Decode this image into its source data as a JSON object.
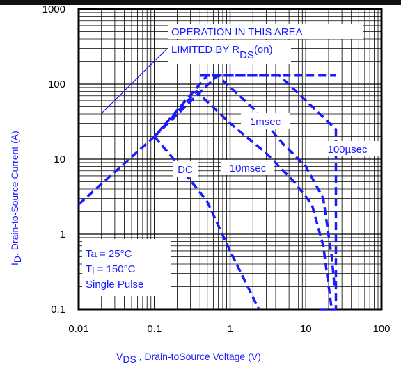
{
  "chart_data": {
    "type": "line",
    "x_scale": "log",
    "y_scale": "log",
    "xlim": [
      0.01,
      100
    ],
    "ylim": [
      0.1,
      1000
    ],
    "x_ticks": [
      "0.01",
      "0.1",
      "1",
      "10",
      "100"
    ],
    "y_ticks": [
      "0.1",
      "1",
      "10",
      "100",
      "1000"
    ],
    "grid": true,
    "xlabel": {
      "main": "V",
      "sub": "DS",
      "rest": ", Drain-toSource Voltage (V)"
    },
    "ylabel": {
      "main": "I",
      "sub": "D",
      "rest": ",  Drain-to-Source Current (A)"
    },
    "annotations": {
      "line1": "OPERATION IN THIS AREA",
      "line2_main": "LIMITED BY R",
      "line2_sub": "DS",
      "line2_rest": "(on)"
    },
    "conditions": [
      "Ta = 25°C",
      "Tj = 150°C",
      "Single Pulse"
    ],
    "series": [
      {
        "name": "100µsec",
        "x": [
          0.01,
          0.1,
          0.5,
          4.5,
          25,
          25,
          25
        ],
        "y": [
          2.5,
          20,
          130,
          130,
          25,
          1,
          0.1
        ]
      },
      {
        "name": "1msec",
        "x": [
          0.1,
          0.68,
          2,
          5,
          10,
          17,
          22,
          24
        ],
        "y": [
          20,
          130,
          48,
          16,
          8,
          3,
          0.5,
          0.2
        ]
      },
      {
        "name": "10msec",
        "x": [
          0.1,
          0.36,
          1,
          3,
          7,
          12,
          17,
          22
        ],
        "y": [
          20,
          80,
          30,
          12,
          5,
          2.5,
          0.7,
          0.1
        ]
      },
      {
        "name": "DC",
        "x": [
          0.1,
          0.18,
          0.5,
          1,
          2.4
        ],
        "y": [
          20,
          10,
          2.7,
          0.6,
          0.1
        ]
      }
    ],
    "limit_lines": [
      {
        "x": [
          0.4,
          25
        ],
        "y": [
          130,
          130
        ]
      },
      {
        "x": [
          15,
          25
        ],
        "y": [
          0.1,
          0.1
        ]
      }
    ],
    "color": "#1a1aff"
  }
}
